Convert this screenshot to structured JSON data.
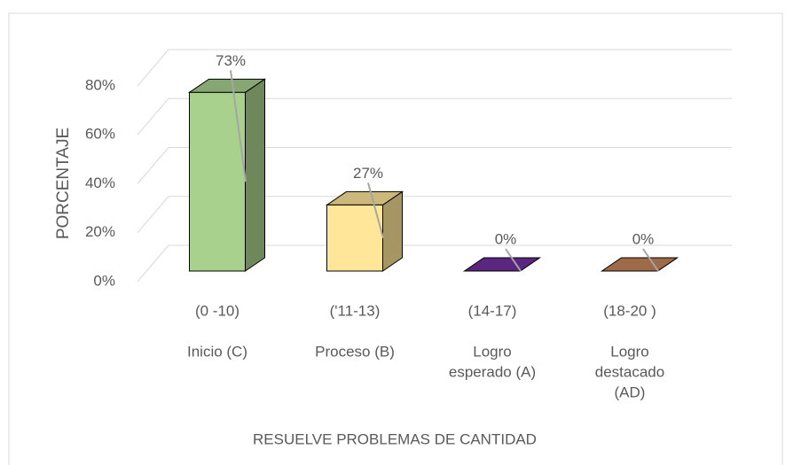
{
  "chart_data": {
    "type": "bar3d",
    "x_label": "RESUELVE PROBLEMAS DE CANTIDAD",
    "y_label": "PORCENTAJE",
    "categories": [
      [
        "(0 -10)",
        "Inicio (C)"
      ],
      [
        "('11-13)",
        "Proceso (B)"
      ],
      [
        "(14-17)",
        "Logro",
        "esperado  (A)"
      ],
      [
        "(18-20 )",
        "Logro",
        "destacado",
        "(AD)"
      ]
    ],
    "values": [
      73,
      27,
      0,
      0
    ],
    "value_labels": [
      "73%",
      "27%",
      "0%",
      "0%"
    ],
    "colors": [
      "#a9d18e",
      "#ffe699",
      "#7030a0",
      "#c5845a"
    ],
    "ylim": [
      0,
      80
    ],
    "yticks": [
      {
        "value": 0,
        "label": "0%"
      },
      {
        "value": 20,
        "label": "20%"
      },
      {
        "value": 40,
        "label": "40%"
      },
      {
        "value": 60,
        "label": "60%"
      },
      {
        "value": 80,
        "label": "80%"
      }
    ],
    "grid": true
  }
}
